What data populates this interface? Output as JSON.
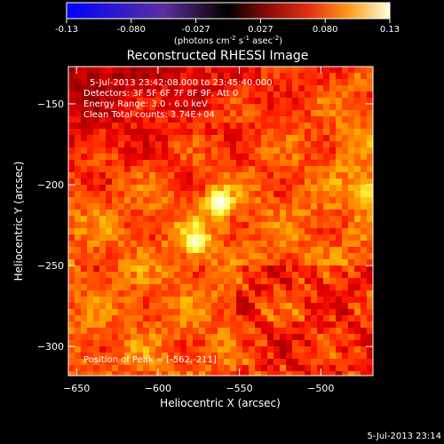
{
  "chart_data": {
    "type": "heatmap",
    "title": "Reconstructed RHESSI Image",
    "xlabel": "Heliocentric X (arcsec)",
    "ylabel": "Heliocentric Y (arcsec)",
    "xlim": [
      -655,
      -468
    ],
    "ylim": [
      -318,
      -127
    ],
    "xticks": [
      -650,
      -600,
      -550,
      -500
    ],
    "yticks": [
      -150,
      -200,
      -250,
      -300
    ],
    "colorbar": {
      "colormap": "hot",
      "range": [
        -0.13,
        0.13
      ],
      "ticks": [
        "-0.13",
        "-0.080",
        "-0.027",
        "0.027",
        "0.080",
        "0.13"
      ],
      "unit_prefix": "(photons cm",
      "unit_sup1": "-2",
      "unit_mid": " s",
      "unit_sup2": "-1",
      "unit_mid2": " asec",
      "unit_sup3": "-2",
      "unit_suffix": ")"
    },
    "sources": [
      {
        "x": -562,
        "y": -211,
        "peak": 0.13
      },
      {
        "x": -577,
        "y": -235,
        "peak": 0.12
      },
      {
        "x": -472,
        "y": -205,
        "peak": 0.09
      },
      {
        "x": -482,
        "y": -175,
        "peak": 0.06
      }
    ],
    "annotations": {
      "time": "5-Jul-2013 23:42:08.000 to 23:45:40.000",
      "detectors": "Detectors: 3F 5F 6F 7F 8F 9F, Att 0",
      "energy": "Energy Range: 3.0 - 6.0 keV",
      "clean": "Clean     Total counts: 3.74E+04",
      "peak_position": "Position of Peak = [-562,-211]"
    },
    "footer_date": "5-Jul-2013 23:14"
  }
}
